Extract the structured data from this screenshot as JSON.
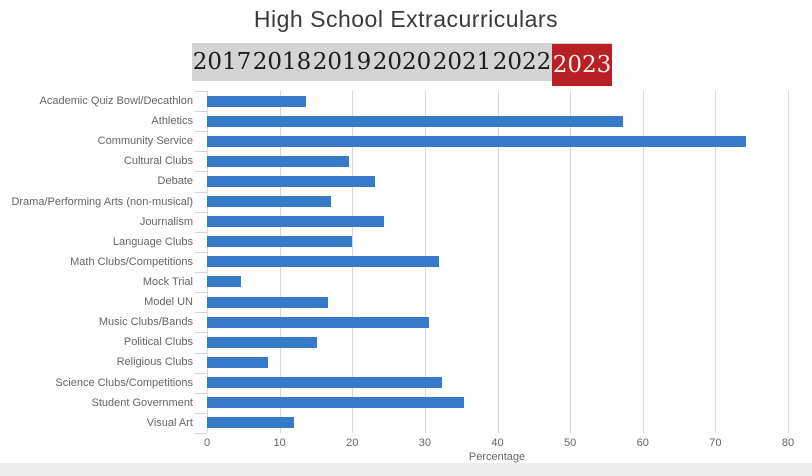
{
  "header": {
    "title": "High School Extracurriculars"
  },
  "tabs": {
    "years": [
      "2017",
      "2018",
      "2019",
      "2020",
      "2021",
      "2022",
      "2023"
    ],
    "selected": "2023",
    "bar_bg": "#d4d4d4",
    "text_color": "#1c1c1c",
    "selected_bg": "#b82025",
    "selected_text": "#f9f2e4"
  },
  "chart_data": {
    "type": "bar",
    "orientation": "horizontal",
    "title": "High School Extracurriculars",
    "categories": [
      "Academic Quiz Bowl/Decathlon",
      "Athletics",
      "Community Service",
      "Cultural Clubs",
      "Debate",
      "Drama/Performing Arts (non-musical)",
      "Journalism",
      "Language Clubs",
      "Math Clubs/Competitions",
      "Mock Trial",
      "Model UN",
      "Music Clubs/Bands",
      "Political Clubs",
      "Religious Clubs",
      "Science Clubs/Competitions",
      "Student Government",
      "Visual Art"
    ],
    "values": [
      13.7,
      57.3,
      74.2,
      19.6,
      23.2,
      17.1,
      24.4,
      19.9,
      32.0,
      4.7,
      16.7,
      30.6,
      15.2,
      8.4,
      32.3,
      35.4,
      12.0
    ],
    "series_year": "2023",
    "xlabel": "Percentage",
    "xlim": [
      0,
      80
    ],
    "xticks": [
      0,
      10,
      20,
      30,
      40,
      50,
      60,
      70,
      80
    ],
    "grid": true,
    "legend": "none",
    "bar_color": "#377bc8",
    "gridline_color": "#d9d9d9",
    "label_color": "#666666"
  }
}
